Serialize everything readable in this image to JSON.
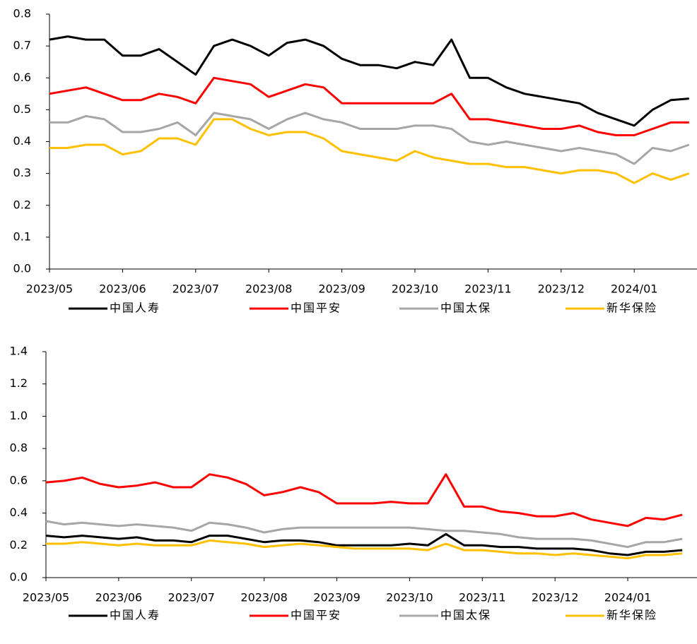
{
  "chart_data": [
    {
      "type": "line",
      "categories": [
        "2023/05",
        null,
        null,
        null,
        "2023/06",
        null,
        null,
        null,
        "2023/07",
        null,
        null,
        null,
        "2023/08",
        null,
        null,
        null,
        "2023/09",
        null,
        null,
        null,
        "2023/10",
        null,
        null,
        null,
        "2023/11",
        null,
        null,
        null,
        "2023/12",
        null,
        null,
        null,
        "2024/01",
        null,
        null,
        null
      ],
      "series": [
        {
          "name": "中国人寿",
          "color": "#000000",
          "values": [
            0.72,
            0.73,
            0.72,
            0.72,
            0.67,
            0.67,
            0.69,
            0.65,
            0.61,
            0.7,
            0.72,
            0.7,
            0.67,
            0.71,
            0.72,
            0.7,
            0.66,
            0.64,
            0.64,
            0.63,
            0.65,
            0.64,
            0.72,
            0.6,
            0.6,
            0.57,
            0.55,
            0.54,
            0.53,
            0.52,
            0.49,
            0.47,
            0.45,
            0.5,
            0.53,
            0.535
          ]
        },
        {
          "name": "中国平安",
          "color": "#ff0000",
          "values": [
            0.55,
            0.56,
            0.57,
            0.55,
            0.53,
            0.53,
            0.55,
            0.54,
            0.52,
            0.6,
            0.59,
            0.58,
            0.54,
            0.56,
            0.58,
            0.57,
            0.52,
            0.52,
            0.52,
            0.52,
            0.52,
            0.52,
            0.55,
            0.47,
            0.47,
            0.46,
            0.45,
            0.44,
            0.44,
            0.45,
            0.43,
            0.42,
            0.42,
            0.44,
            0.46,
            0.46
          ]
        },
        {
          "name": "中国太保",
          "color": "#a6a6a6",
          "values": [
            0.46,
            0.46,
            0.48,
            0.47,
            0.43,
            0.43,
            0.44,
            0.46,
            0.42,
            0.49,
            0.48,
            0.47,
            0.44,
            0.47,
            0.49,
            0.47,
            0.46,
            0.44,
            0.44,
            0.44,
            0.45,
            0.45,
            0.44,
            0.4,
            0.39,
            0.4,
            0.39,
            0.38,
            0.37,
            0.38,
            0.37,
            0.36,
            0.33,
            0.38,
            0.37,
            0.39
          ]
        },
        {
          "name": "新华保险",
          "color": "#ffc000",
          "values": [
            0.38,
            0.38,
            0.39,
            0.39,
            0.36,
            0.37,
            0.41,
            0.41,
            0.39,
            0.47,
            0.47,
            0.44,
            0.42,
            0.43,
            0.43,
            0.41,
            0.37,
            0.36,
            0.35,
            0.34,
            0.37,
            0.35,
            0.34,
            0.33,
            0.33,
            0.32,
            0.32,
            0.31,
            0.3,
            0.31,
            0.31,
            0.3,
            0.27,
            0.3,
            0.28,
            0.3
          ]
        }
      ],
      "ylim": [
        0,
        0.8
      ],
      "yticks": [
        {
          "value": 0,
          "label": "0.0"
        },
        0.1,
        0.2,
        0.3,
        0.4,
        0.5,
        0.6,
        0.7,
        0.8
      ]
    },
    {
      "type": "line",
      "categories": [
        "2023/05",
        null,
        null,
        null,
        "2023/06",
        null,
        null,
        null,
        "2023/07",
        null,
        null,
        null,
        "2023/08",
        null,
        null,
        null,
        "2023/09",
        null,
        null,
        null,
        "2023/10",
        null,
        null,
        null,
        "2023/11",
        null,
        null,
        null,
        "2023/12",
        null,
        null,
        null,
        "2024/01",
        null,
        null,
        null
      ],
      "series": [
        {
          "name": "中国人寿",
          "color": "#000000",
          "values": [
            0.26,
            0.25,
            0.26,
            0.25,
            0.24,
            0.25,
            0.23,
            0.23,
            0.22,
            0.26,
            0.26,
            0.24,
            0.22,
            0.23,
            0.23,
            0.22,
            0.2,
            0.2,
            0.2,
            0.2,
            0.21,
            0.2,
            0.27,
            0.2,
            0.2,
            0.19,
            0.19,
            0.18,
            0.18,
            0.18,
            0.17,
            0.15,
            0.14,
            0.16,
            0.16,
            0.17
          ]
        },
        {
          "name": "中国平安",
          "color": "#ff0000",
          "values": [
            0.59,
            0.6,
            0.62,
            0.58,
            0.56,
            0.57,
            0.59,
            0.56,
            0.56,
            0.64,
            0.62,
            0.58,
            0.51,
            0.53,
            0.56,
            0.53,
            0.46,
            0.46,
            0.46,
            0.47,
            0.46,
            0.46,
            0.64,
            0.44,
            0.44,
            0.41,
            0.4,
            0.38,
            0.38,
            0.4,
            0.36,
            0.34,
            0.32,
            0.37,
            0.36,
            0.39
          ]
        },
        {
          "name": "中国太保",
          "color": "#a6a6a6",
          "values": [
            0.35,
            0.33,
            0.34,
            0.33,
            0.32,
            0.33,
            0.32,
            0.31,
            0.29,
            0.34,
            0.33,
            0.31,
            0.28,
            0.3,
            0.31,
            0.31,
            0.31,
            0.31,
            0.31,
            0.31,
            0.31,
            0.3,
            0.29,
            0.29,
            0.28,
            0.27,
            0.25,
            0.24,
            0.24,
            0.24,
            0.23,
            0.21,
            0.19,
            0.22,
            0.22,
            0.24
          ]
        },
        {
          "name": "新华保险",
          "color": "#ffc000",
          "values": [
            0.21,
            0.21,
            0.22,
            0.21,
            0.2,
            0.21,
            0.2,
            0.2,
            0.2,
            0.23,
            0.22,
            0.21,
            0.19,
            0.2,
            0.21,
            0.2,
            0.19,
            0.18,
            0.18,
            0.18,
            0.18,
            0.17,
            0.21,
            0.17,
            0.17,
            0.16,
            0.15,
            0.15,
            0.14,
            0.15,
            0.14,
            0.13,
            0.12,
            0.14,
            0.14,
            0.15
          ]
        }
      ],
      "ylim": [
        0,
        1.4
      ],
      "yticks": [
        {
          "value": 0,
          "label": "0.0"
        },
        0.2,
        0.4,
        0.6,
        0.8,
        {
          "value": 1,
          "label": "1.0"
        },
        1.2,
        1.4
      ]
    }
  ]
}
